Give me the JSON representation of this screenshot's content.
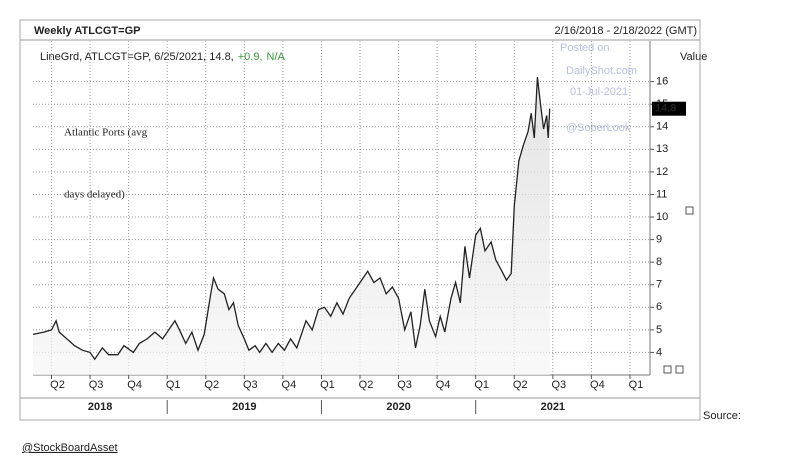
{
  "chart_data": {
    "type": "line",
    "title": "Weekly ATLCGT=GP",
    "date_range": "2/16/2018 - 2/18/2022 (GMT)",
    "legend_text": "LineGrd, ATLCGT=GP, 6/25/2021, 14.8,",
    "change": "+0.9,",
    "status": "N/A",
    "y_label": "Value",
    "annotation": [
      "Atlantic Ports (avg",
      "days delayed)"
    ],
    "watermark": [
      "Posted on",
      "DailyShot.com",
      "01-Jul-2021",
      "@SoberLook"
    ],
    "source": "Source:",
    "credit": "@StockBoardAsset",
    "color": "#222222",
    "grid": true,
    "x": [
      2018.13,
      2018.2,
      2018.25,
      2018.28,
      2018.3,
      2018.35,
      2018.4,
      2018.45,
      2018.5,
      2018.53,
      2018.58,
      2018.62,
      2018.68,
      2018.72,
      2018.78,
      2018.82,
      2018.87,
      2018.92,
      2018.97,
      2019.0,
      2019.05,
      2019.08,
      2019.12,
      2019.16,
      2019.2,
      2019.24,
      2019.28,
      2019.3,
      2019.33,
      2019.37,
      2019.4,
      2019.43,
      2019.46,
      2019.5,
      2019.53,
      2019.57,
      2019.6,
      2019.64,
      2019.68,
      2019.72,
      2019.76,
      2019.8,
      2019.84,
      2019.9,
      2019.94,
      2019.98,
      2020.02,
      2020.06,
      2020.1,
      2020.14,
      2020.18,
      2020.22,
      2020.26,
      2020.3,
      2020.34,
      2020.38,
      2020.42,
      2020.46,
      2020.5,
      2020.54,
      2020.58,
      2020.61,
      2020.64,
      2020.67,
      2020.7,
      2020.74,
      2020.77,
      2020.8,
      2020.84,
      2020.87,
      2020.9,
      2020.93,
      2020.96,
      2021.0,
      2021.03,
      2021.06,
      2021.1,
      2021.13,
      2021.17,
      2021.2,
      2021.23,
      2021.25,
      2021.28,
      2021.31,
      2021.34,
      2021.36,
      2021.38,
      2021.4,
      2021.42,
      2021.44,
      2021.46,
      2021.47,
      2021.48
    ],
    "values": [
      4.8,
      4.9,
      5.0,
      5.4,
      4.9,
      4.6,
      4.3,
      4.1,
      4.0,
      3.7,
      4.2,
      3.9,
      3.9,
      4.3,
      4.0,
      4.4,
      4.6,
      4.9,
      4.6,
      4.9,
      5.4,
      5.0,
      4.4,
      4.9,
      4.1,
      4.8,
      6.5,
      7.3,
      6.8,
      6.6,
      5.9,
      6.2,
      5.2,
      4.6,
      4.1,
      4.3,
      4.0,
      4.4,
      4.0,
      4.4,
      4.1,
      4.6,
      4.2,
      5.4,
      5.0,
      5.9,
      6.0,
      5.6,
      6.2,
      5.7,
      6.4,
      6.8,
      7.2,
      7.6,
      7.1,
      7.3,
      6.6,
      6.9,
      6.4,
      5.0,
      5.8,
      4.2,
      5.2,
      6.8,
      5.4,
      4.7,
      5.6,
      4.9,
      6.4,
      7.1,
      6.2,
      8.7,
      7.3,
      9.2,
      9.5,
      8.5,
      8.9,
      8.1,
      7.6,
      7.2,
      7.5,
      10.5,
      12.5,
      13.2,
      13.8,
      14.6,
      13.5,
      16.2,
      15.0,
      13.9,
      14.5,
      13.5,
      14.8
    ],
    "xlim": [
      2018.13,
      2022.13
    ],
    "xticks": [
      {
        "value": 2018.25,
        "label": "Q2"
      },
      {
        "value": 2018.5,
        "label": "Q3"
      },
      {
        "value": 2018.75,
        "label": "Q4"
      },
      {
        "value": 2019.0,
        "label": "Q1"
      },
      {
        "value": 2019.25,
        "label": "Q2"
      },
      {
        "value": 2019.5,
        "label": "Q3"
      },
      {
        "value": 2019.75,
        "label": "Q4"
      },
      {
        "value": 2020.0,
        "label": "Q1"
      },
      {
        "value": 2020.25,
        "label": "Q2"
      },
      {
        "value": 2020.5,
        "label": "Q3"
      },
      {
        "value": 2020.75,
        "label": "Q4"
      },
      {
        "value": 2021.0,
        "label": "Q1"
      },
      {
        "value": 2021.25,
        "label": "Q2"
      },
      {
        "value": 2021.5,
        "label": "Q3"
      },
      {
        "value": 2021.75,
        "label": "Q4"
      },
      {
        "value": 2022.0,
        "label": "Q1"
      }
    ],
    "years": [
      2018,
      2019,
      2020,
      2021
    ],
    "ylim": [
      3,
      17.8
    ],
    "yticks": [
      4,
      5,
      6,
      7,
      8,
      9,
      10,
      11,
      12,
      13,
      14,
      15,
      16
    ]
  }
}
